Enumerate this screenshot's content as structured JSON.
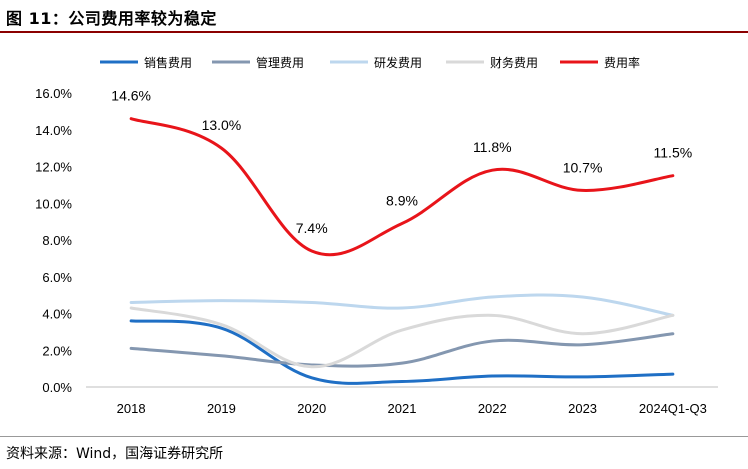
{
  "header": {
    "title": "图 11：公司费用率较为稳定"
  },
  "footer": {
    "source": "资料来源：Wind，国海证券研究所"
  },
  "chart_data": {
    "type": "line",
    "title": "公司费用率较为稳定",
    "categories": [
      "2018",
      "2019",
      "2020",
      "2021",
      "2022",
      "2023",
      "2024Q1-Q3"
    ],
    "ylim": [
      0,
      16
    ],
    "yticks": [
      0,
      2,
      4,
      6,
      8,
      10,
      12,
      14,
      16
    ],
    "ytick_labels": [
      "0.0%",
      "2.0%",
      "4.0%",
      "6.0%",
      "8.0%",
      "10.0%",
      "12.0%",
      "14.0%",
      "16.0%"
    ],
    "legend_position": "top",
    "series": [
      {
        "name": "销售费用",
        "color": "#1f6fc5",
        "values": [
          3.6,
          3.2,
          0.5,
          0.3,
          0.6,
          0.55,
          0.7
        ]
      },
      {
        "name": "管理费用",
        "color": "#8497b0",
        "values": [
          2.1,
          1.7,
          1.2,
          1.3,
          2.5,
          2.3,
          2.9
        ]
      },
      {
        "name": "研发费用",
        "color": "#bdd7ee",
        "values": [
          4.6,
          4.7,
          4.6,
          4.3,
          4.9,
          4.9,
          3.9
        ]
      },
      {
        "name": "财务费用",
        "color": "#d9d9d9",
        "values": [
          4.3,
          3.4,
          1.1,
          3.1,
          3.9,
          2.9,
          3.9
        ]
      },
      {
        "name": "费用率",
        "color": "#e8141a",
        "values": [
          14.6,
          13.0,
          7.4,
          8.9,
          11.8,
          10.7,
          11.5
        ],
        "labels": [
          "14.6%",
          "13.0%",
          "7.4%",
          "8.9%",
          "11.8%",
          "10.7%",
          "11.5%"
        ]
      }
    ]
  }
}
